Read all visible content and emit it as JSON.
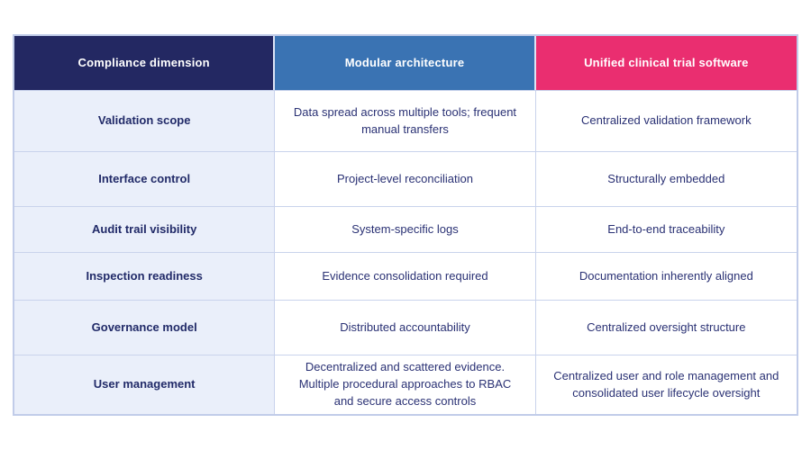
{
  "table": {
    "columns": [
      {
        "label": "Compliance dimension",
        "header_bg": "#232862"
      },
      {
        "label": "Modular architecture",
        "header_bg": "#3a73b3"
      },
      {
        "label": "Unified clinical trial software",
        "header_bg": "#ea2e70"
      }
    ],
    "rows": [
      {
        "dimension": "Validation scope",
        "modular": "Data spread across multiple tools; frequent manual transfers",
        "unified": "Centralized validation framework"
      },
      {
        "dimension": "Interface control",
        "modular": "Project-level reconciliation",
        "unified": "Structurally embedded"
      },
      {
        "dimension": "Audit trail visibility",
        "modular": "System-specific logs",
        "unified": "End-to-end traceability"
      },
      {
        "dimension": "Inspection readiness",
        "modular": "Evidence consolidation required",
        "unified": "Documentation inherently aligned"
      },
      {
        "dimension": "Governance model",
        "modular": "Distributed accountability",
        "unified": "Centralized oversight structure"
      },
      {
        "dimension": "User management",
        "modular": "Decentralized and scattered evidence. Multiple procedural approaches to RBAC and secure access controls",
        "unified": "Centralized user and role management and consolidated user lifecycle oversight"
      }
    ],
    "colors": {
      "header_navy": "#232862",
      "header_blue": "#3a73b3",
      "header_pink": "#ea2e70",
      "dimension_column_bg": "#eaeffa",
      "body_text": "#2a3174",
      "dimension_text": "#212a68",
      "border": "#c9d3ec",
      "outer_border": "#c1cce9"
    }
  }
}
